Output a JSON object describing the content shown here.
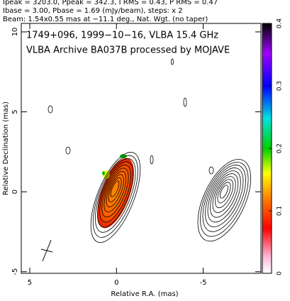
{
  "chart_data": {
    "type": "contour",
    "header": [
      "Ipeak = 3203.0, Ppeak = 342.3, I RMS = 0.43, P RMS = 0.47",
      "Ibase = 3.00, Pbase = 1.69 (mJy/beam), steps: x 2",
      "Beam: 1.54x0.55 mas at −11.1 deg., Nat. Wgt. (no taper)"
    ],
    "annotation": [
      "1749+096, 1999−10−16, VLBA 15.4 GHz",
      "VLBA Archive BA037B processed by MOJAVE"
    ],
    "xlabel": "Relative R.A. (mas)",
    "ylabel": "Relative Declination (mas)",
    "xlim": [
      5.49,
      -8.33
    ],
    "ylim": [
      -5.1,
      10.53
    ],
    "xticks": [
      5,
      0,
      -5
    ],
    "yticks": [
      -5,
      0,
      5,
      10
    ],
    "colorbar": {
      "lim": [
        0,
        0.4
      ],
      "ticks": [
        0,
        0.1,
        0.2,
        0.3,
        0.4
      ]
    }
  }
}
